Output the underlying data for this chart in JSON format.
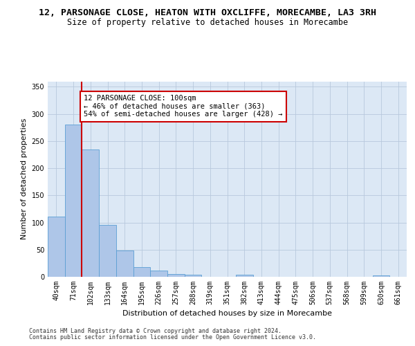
{
  "title1": "12, PARSONAGE CLOSE, HEATON WITH OXCLIFFE, MORECAMBE, LA3 3RH",
  "title2": "Size of property relative to detached houses in Morecambe",
  "xlabel": "Distribution of detached houses by size in Morecambe",
  "ylabel": "Number of detached properties",
  "categories": [
    "40sqm",
    "71sqm",
    "102sqm",
    "133sqm",
    "164sqm",
    "195sqm",
    "226sqm",
    "257sqm",
    "288sqm",
    "319sqm",
    "351sqm",
    "382sqm",
    "413sqm",
    "444sqm",
    "475sqm",
    "506sqm",
    "537sqm",
    "568sqm",
    "599sqm",
    "630sqm",
    "661sqm"
  ],
  "values": [
    111,
    280,
    235,
    95,
    49,
    18,
    11,
    5,
    4,
    0,
    0,
    4,
    0,
    0,
    0,
    0,
    0,
    0,
    0,
    3,
    0
  ],
  "bar_color": "#aec6e8",
  "bar_edge_color": "#5a9fd4",
  "vline_color": "#cc0000",
  "ylim": [
    0,
    360
  ],
  "yticks": [
    0,
    50,
    100,
    150,
    200,
    250,
    300,
    350
  ],
  "annotation_text": "12 PARSONAGE CLOSE: 100sqm\n← 46% of detached houses are smaller (363)\n54% of semi-detached houses are larger (428) →",
  "annotation_box_color": "#ffffff",
  "annotation_box_edge": "#cc0000",
  "footnote1": "Contains HM Land Registry data © Crown copyright and database right 2024.",
  "footnote2": "Contains public sector information licensed under the Open Government Licence v3.0.",
  "plot_bg_color": "#dce8f5",
  "title_fontsize": 9.5,
  "subtitle_fontsize": 8.5,
  "tick_fontsize": 7,
  "ylabel_fontsize": 8,
  "xlabel_fontsize": 8,
  "footnote_fontsize": 6
}
